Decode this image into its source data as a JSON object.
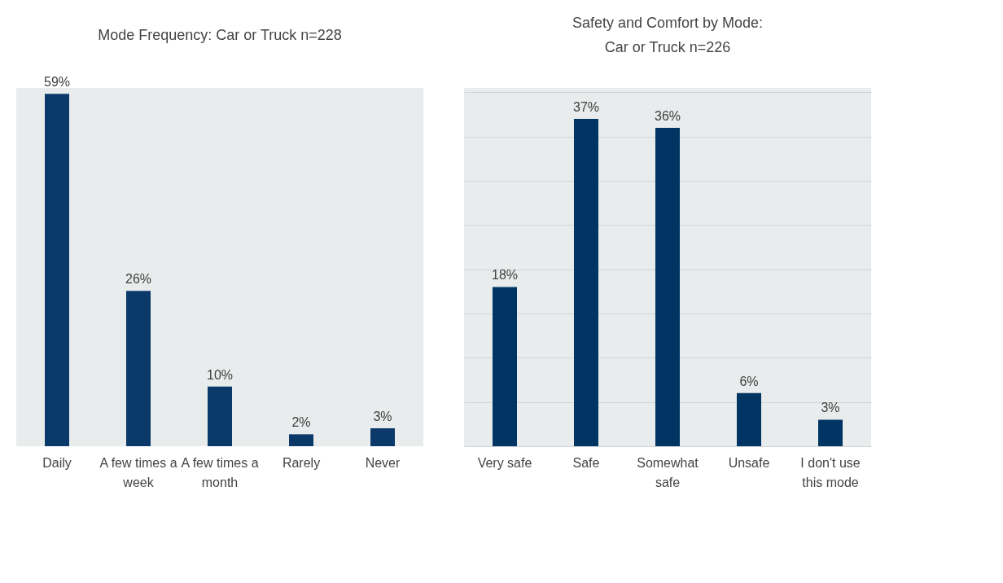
{
  "chart_data": [
    {
      "type": "bar",
      "title": "Mode Frequency: Car or Truck n=228",
      "categories": [
        "Daily",
        "A few times a\nweek",
        "A few times a\nmonth",
        "Rarely",
        "Never"
      ],
      "values": [
        59,
        26,
        10,
        2,
        3
      ],
      "value_labels": [
        "59%",
        "26%",
        "10%",
        "2%",
        "3%"
      ],
      "color": "#0b3a6a",
      "grid": false,
      "tick_labels": "x"
    },
    {
      "type": "bar",
      "title": "Safety and Comfort by Mode:\nCar or Truck n=226",
      "categories": [
        "Very safe",
        "Safe",
        "Somewhat\nsafe",
        "Unsafe",
        "I don't use\nthis mode"
      ],
      "values": [
        18,
        37,
        36,
        6,
        3
      ],
      "value_labels": [
        "18%",
        "37%",
        "36%",
        "6%",
        "3%"
      ],
      "color": "#003462",
      "ylim": [
        0,
        40.5
      ],
      "yticks": [
        {
          "value": 0,
          "label": null
        },
        {
          "value": 5,
          "label": null
        },
        {
          "value": 10,
          "label": null
        },
        {
          "value": 15,
          "label": null
        },
        {
          "value": 20,
          "label": null
        },
        {
          "value": 25,
          "label": null
        },
        {
          "value": 30,
          "label": null
        },
        {
          "value": 35,
          "label": null
        },
        {
          "value": 40,
          "label": null
        }
      ],
      "grid": "y",
      "tick_labels": "x"
    }
  ]
}
